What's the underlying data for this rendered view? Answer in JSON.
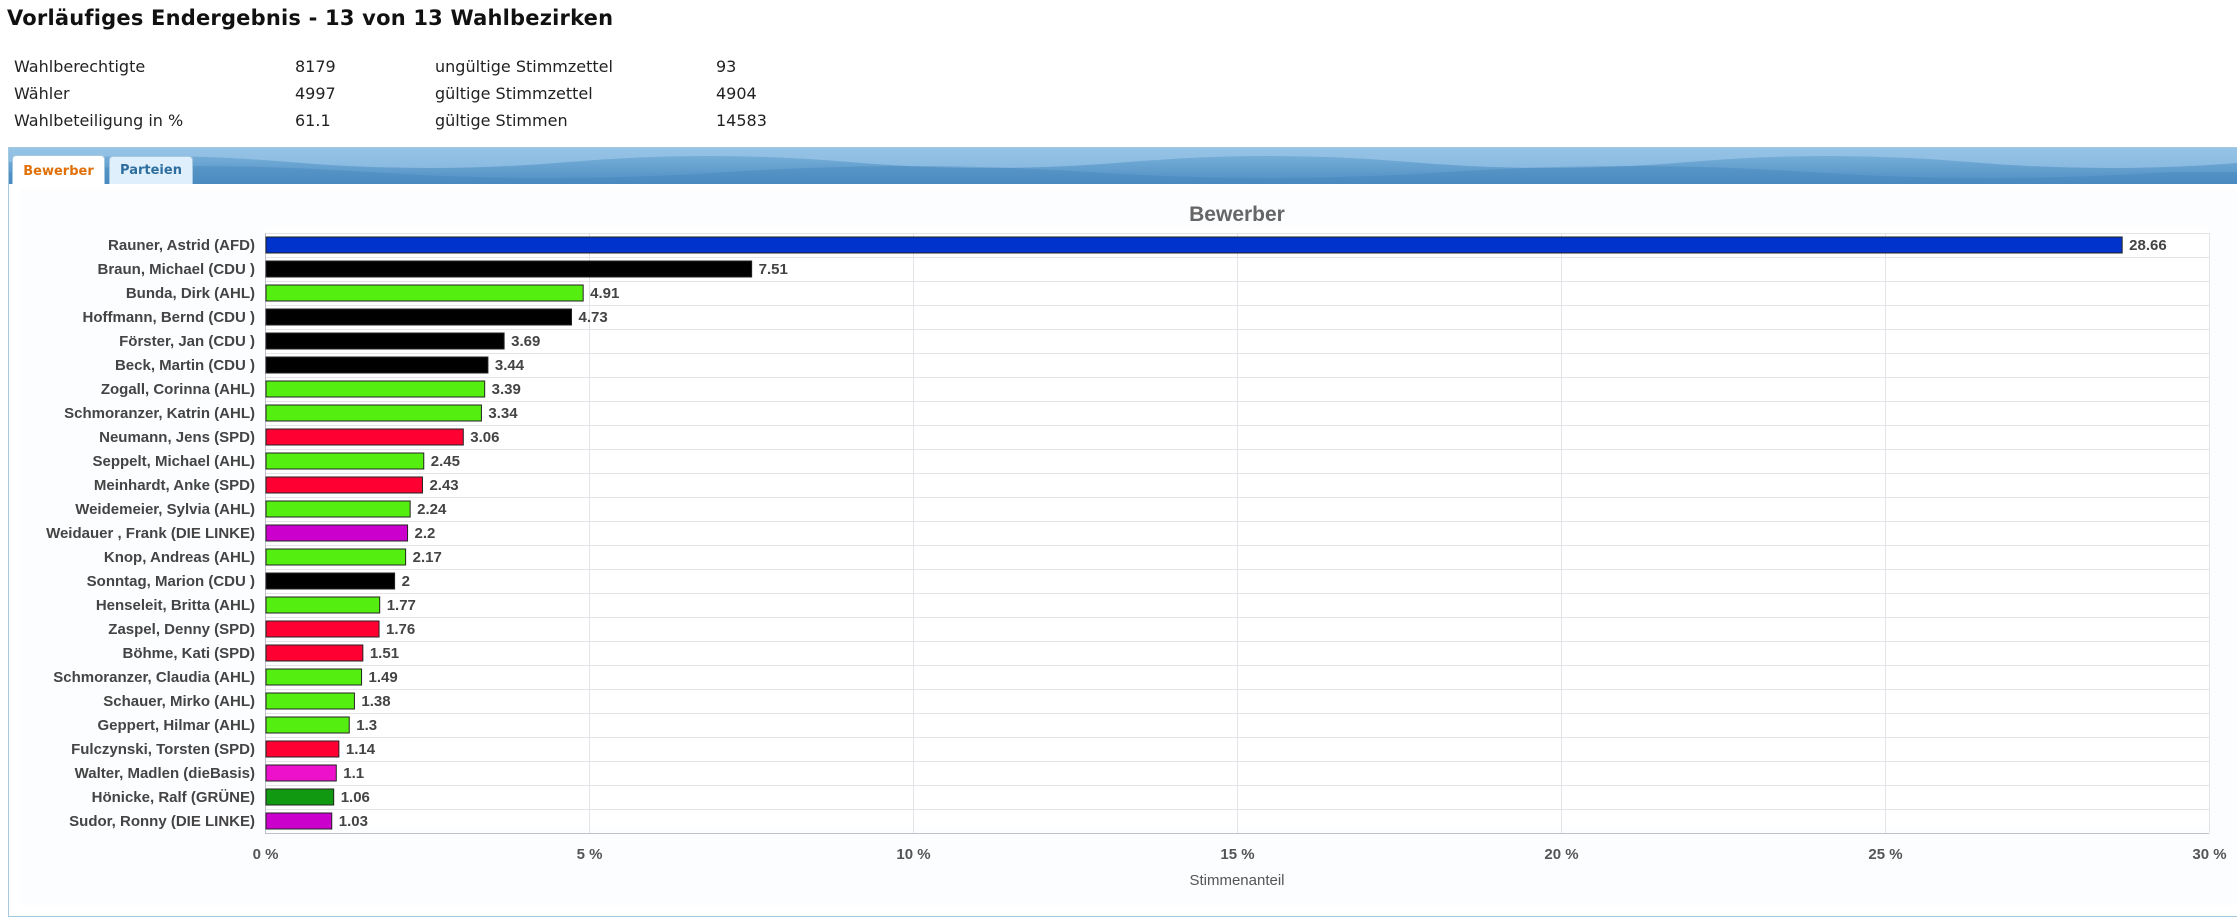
{
  "page": {
    "title": "Vorläufiges Endergebnis - 13 von 13 Wahlbezirken"
  },
  "stats": {
    "rows": [
      {
        "label1": "Wahlberechtigte",
        "value1": "8179",
        "label2": "ungültige Stimmzettel",
        "value2": "93"
      },
      {
        "label1": "Wähler",
        "value1": "4997",
        "label2": "gültige Stimmzettel",
        "value2": "4904"
      },
      {
        "label1": "Wahlbeteiligung in %",
        "value1": "61.1",
        "label2": "gültige Stimmen",
        "value2": "14583"
      }
    ]
  },
  "tabs": [
    {
      "label": "Bewerber",
      "active": true
    },
    {
      "label": "Parteien",
      "active": false
    }
  ],
  "colors": {
    "AFD": "#0033cc",
    "CDU": "#000000",
    "AHL": "#55ee11",
    "SPD": "#ff0033",
    "DIE LINKE": "#cc00cc",
    "dieBasis": "#ee11cc",
    "GRÜNE": "#119911"
  },
  "chart_data": {
    "type": "bar",
    "orientation": "horizontal",
    "title": "Bewerber",
    "xlabel": "Stimmenanteil",
    "ylabel": "",
    "xlim": [
      0,
      30
    ],
    "xticks": [
      "0 %",
      "5 %",
      "10 %",
      "15 %",
      "20 %",
      "25 %",
      "30 %"
    ],
    "grid": true,
    "legend": "none",
    "categories": [
      "Rauner, Astrid (AFD)",
      "Braun, Michael (CDU )",
      "Bunda, Dirk (AHL)",
      "Hoffmann, Bernd (CDU )",
      "Förster, Jan (CDU )",
      "Beck, Martin (CDU )",
      "Zogall, Corinna (AHL)",
      "Schmoranzer, Katrin (AHL)",
      "Neumann, Jens (SPD)",
      "Seppelt, Michael (AHL)",
      "Meinhardt, Anke (SPD)",
      "Weidemeier, Sylvia (AHL)",
      "Weidauer , Frank (DIE LINKE)",
      "Knop, Andreas (AHL)",
      "Sonntag, Marion (CDU )",
      "Henseleit, Britta (AHL)",
      "Zaspel, Denny (SPD)",
      "Böhme, Kati (SPD)",
      "Schmoranzer, Claudia (AHL)",
      "Schauer, Mirko (AHL)",
      "Geppert, Hilmar (AHL)",
      "Fulczynski, Torsten (SPD)",
      "Walter, Madlen (dieBasis)",
      "Hönicke, Ralf (GRÜNE)",
      "Sudor, Ronny (DIE LINKE)"
    ],
    "values": [
      28.66,
      7.51,
      4.91,
      4.73,
      3.69,
      3.44,
      3.39,
      3.34,
      3.06,
      2.45,
      2.43,
      2.24,
      2.2,
      2.17,
      2,
      1.77,
      1.76,
      1.51,
      1.49,
      1.38,
      1.3,
      1.14,
      1.1,
      1.06,
      1.03
    ],
    "value_labels": [
      "28.66",
      "7.51",
      "4.91",
      "4.73",
      "3.69",
      "3.44",
      "3.39",
      "3.34",
      "3.06",
      "2.45",
      "2.43",
      "2.24",
      "2.2",
      "2.17",
      "2",
      "1.77",
      "1.76",
      "1.51",
      "1.49",
      "1.38",
      "1.3",
      "1.14",
      "1.1",
      "1.06",
      "1.03"
    ],
    "parties": [
      "AFD",
      "CDU",
      "AHL",
      "CDU",
      "CDU",
      "CDU",
      "AHL",
      "AHL",
      "SPD",
      "AHL",
      "SPD",
      "AHL",
      "DIE LINKE",
      "AHL",
      "CDU",
      "AHL",
      "SPD",
      "SPD",
      "AHL",
      "AHL",
      "AHL",
      "SPD",
      "dieBasis",
      "GRÜNE",
      "DIE LINKE"
    ]
  }
}
